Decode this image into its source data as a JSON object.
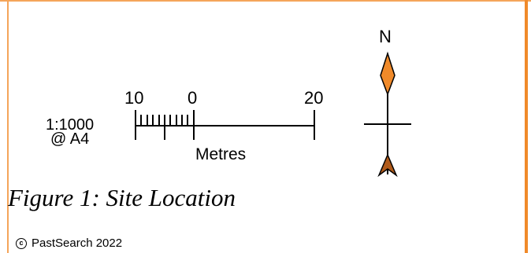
{
  "scale_bar": {
    "ratio_line1": "1:1000",
    "ratio_line2": "@ A4",
    "tick_left": "10",
    "tick_zero": "0",
    "tick_right": "20",
    "unit": "Metres"
  },
  "north_arrow": {
    "label": "N",
    "top_color": "#f08a2a",
    "bottom_color": "#b05a1a"
  },
  "caption": "Figure 1: Site Location",
  "copyright": {
    "text": "PastSearch 2022"
  },
  "colors": {
    "frame": "#f5a55a",
    "frame_right": "#f08a2a"
  }
}
